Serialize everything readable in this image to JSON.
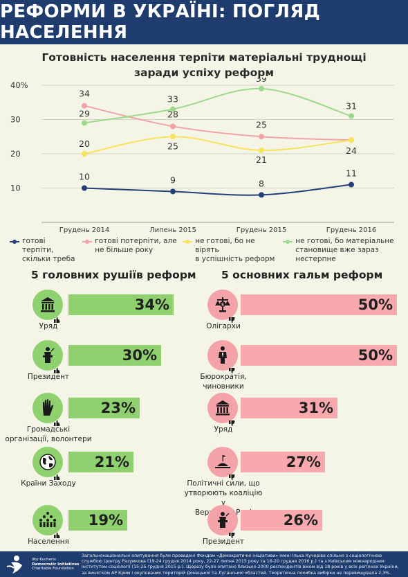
{
  "header": {
    "title": "РЕФОРМИ В УКРАЇНІ: ПОГЛЯД НАСЕЛЕННЯ"
  },
  "chart_data": {
    "type": "line",
    "title_line1": "Готовність населення терпіти матеріальні труднощі",
    "title_line2": "заради успіху реформ",
    "categories": [
      "Грудень 2014",
      "Липень 2015",
      "Грудень 2015",
      "Грудень 2016"
    ],
    "y_ticks": [
      "40%",
      "30",
      "20",
      "10"
    ],
    "ylim": [
      0,
      40
    ],
    "grid": true,
    "series": [
      {
        "name_line1": "готові терпіти,",
        "name_line2": "скільки треба",
        "color": "#23407a",
        "values": [
          10,
          9,
          8,
          11
        ],
        "labels": [
          "10",
          "9",
          "8",
          "11"
        ]
      },
      {
        "name_line1": "готові потерпіти, але",
        "name_line2": "не більше року",
        "color": "#f2a3a6",
        "values": [
          34,
          28,
          25,
          24
        ],
        "labels": [
          "34",
          "28",
          "25",
          ""
        ]
      },
      {
        "name_line1": "не готові, бо не вірять",
        "name_line2": "в успішність реформ",
        "color": "#f7e25c",
        "values": [
          20,
          25,
          21,
          24
        ],
        "labels": [
          "20",
          "25",
          "21",
          "24"
        ]
      },
      {
        "name_line1": "не готові, бо матеріальне",
        "name_line2": "становище вже зараз нестерпне",
        "color": "#9bd98b",
        "values": [
          29,
          33,
          39,
          31
        ],
        "labels": [
          "29",
          "33",
          "39",
          "31"
        ]
      }
    ]
  },
  "drivers": {
    "title": "5 головних  рушіїв реформ",
    "color": "#8fd16f",
    "items": [
      {
        "label_lines": [
          "Уряд"
        ],
        "value": 34,
        "value_label": "34%",
        "icon": "government-building-icon"
      },
      {
        "label_lines": [
          "Президент"
        ],
        "value": 30,
        "value_label": "30%",
        "icon": "president-podium-icon"
      },
      {
        "label_lines": [
          "Громадські",
          "організації, волонтери"
        ],
        "value": 23,
        "value_label": "23%",
        "icon": "raised-hand-icon"
      },
      {
        "label_lines": [
          "Країни Заходу"
        ],
        "value": 21,
        "value_label": "21%",
        "icon": "globe-icon"
      },
      {
        "label_lines": [
          "Населення"
        ],
        "value": 19,
        "value_label": "19%",
        "icon": "crowd-icon"
      }
    ]
  },
  "brakes": {
    "title": "5 основних  гальм  реформ",
    "color": "#f8a9ad",
    "items": [
      {
        "label_lines": [
          "Олігархи"
        ],
        "value": 50,
        "value_label": "50%",
        "icon": "scales-money-icon"
      },
      {
        "label_lines": [
          "Бюрократія,",
          "чиновники"
        ],
        "value": 50,
        "value_label": "50%",
        "icon": "official-person-icon"
      },
      {
        "label_lines": [
          "Уряд"
        ],
        "value": 31,
        "value_label": "31%",
        "icon": "government-building-icon"
      },
      {
        "label_lines": [
          "Політичні сили, що",
          "утворюють коаліцію у",
          "Верховній Раді"
        ],
        "value": 27,
        "value_label": "27%",
        "icon": "parliament-icon"
      },
      {
        "label_lines": [
          "Президент"
        ],
        "value": 26,
        "value_label": "26%",
        "icon": "president-podium-icon"
      }
    ]
  },
  "footer": {
    "logo_line1": "Ilko Kucheriv",
    "logo_line2": "Democratic Initiatives",
    "logo_line3": "Charitable Foundation",
    "note": "Загальнонаціональні опитування були проведені  Фондом «Демократичні ініціативи» імені Ілька Кучеріва спільно з соціологічною службою Центру Разумкова (19-24 грудня 2014 року,    22-27 липня 2015 року та 16-20 грудня 2016 р.) та з Київським міжнародним інститутом соціології (15-25 грудня 2015 р.). Щоразу було  опитано близько 2000 респондентів  віком від 18 років у всіх регіонах України, за винятком АР Крим і окупованих територій Донецької та Луганської областей. Теоретична похибка вибірки не перевищувала 2,3%."
  }
}
